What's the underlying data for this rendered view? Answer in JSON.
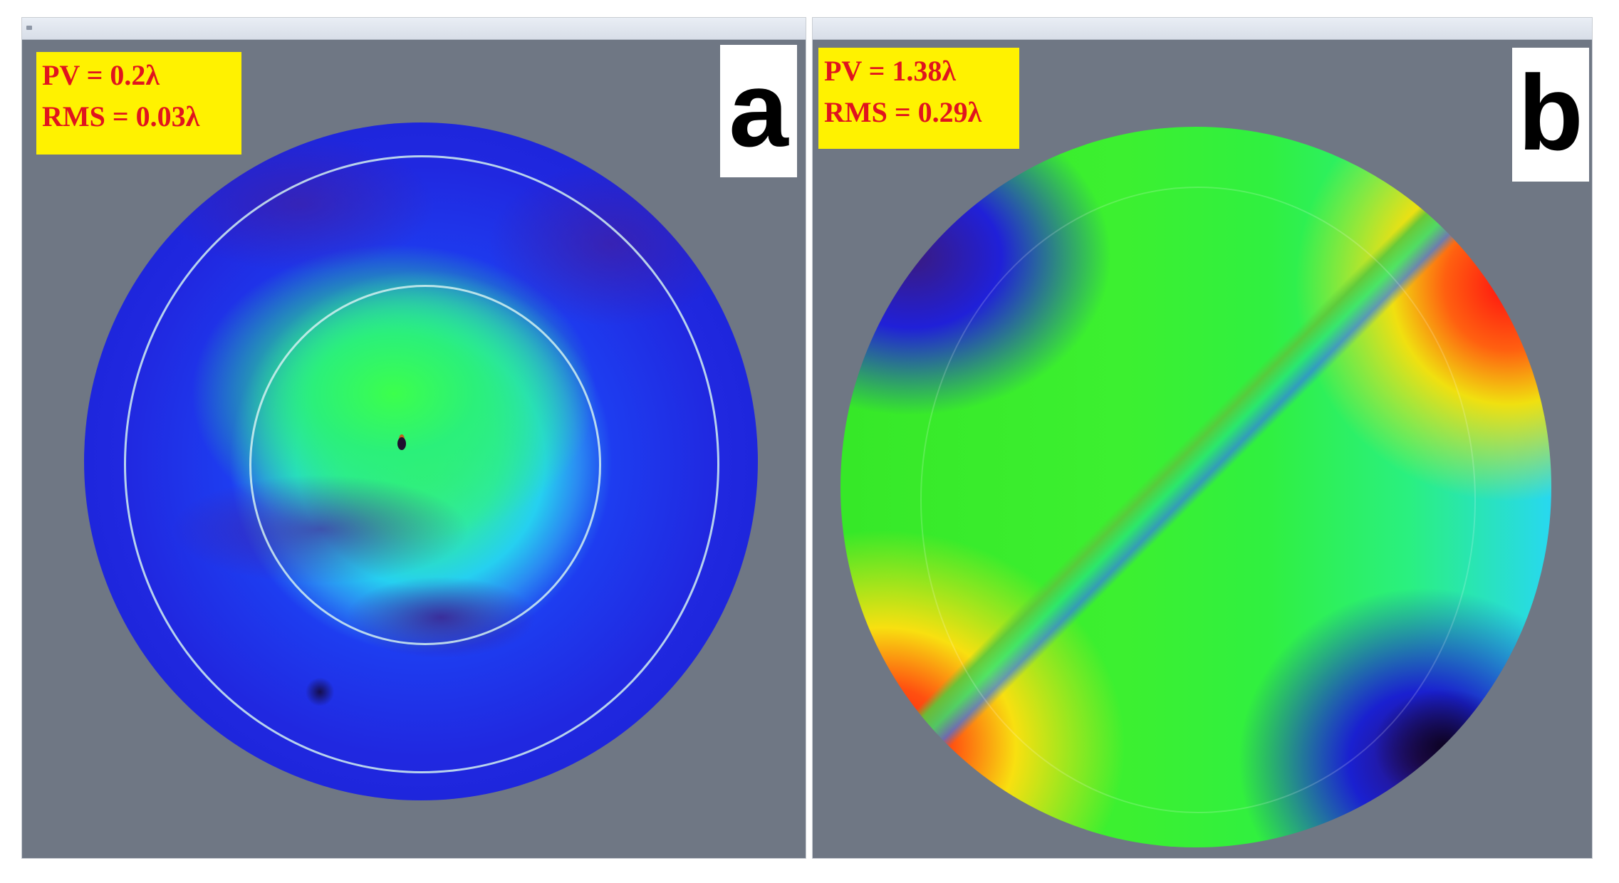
{
  "panel_a": {
    "pv_label": "PV = 0.2λ",
    "rms_label": "RMS = 0.03λ",
    "letter": "a"
  },
  "panel_b": {
    "pv_label": "PV = 1.38λ",
    "rms_label": "RMS = 0.29λ",
    "letter": "b"
  },
  "colors": {
    "panel_background": "#6f7784",
    "readout_background": "#fff200",
    "readout_text": "#e0141e"
  }
}
